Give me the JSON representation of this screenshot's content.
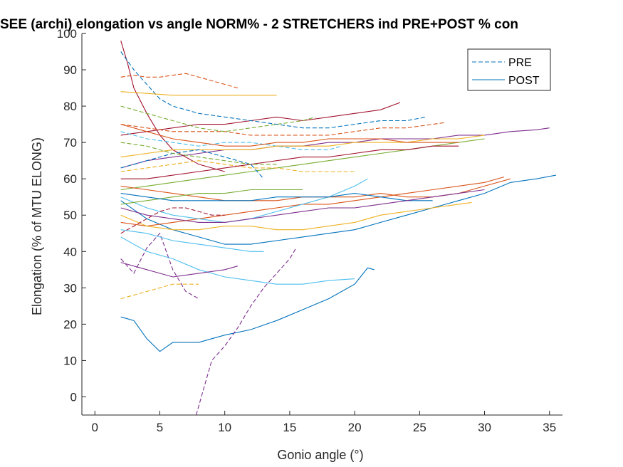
{
  "chart_data": {
    "type": "line",
    "title": "SEE (archi) elongation vs angle NORM% - 2 STRETCHERS ind PRE+POST % con",
    "xlabel": "Gonio angle (°)",
    "ylabel": "Elongation (% of MTU ELONG)",
    "xlim": [
      -1,
      36
    ],
    "ylim": [
      -5,
      100
    ],
    "xticks": [
      "0",
      "5",
      "10",
      "15",
      "20",
      "25",
      "30",
      "35"
    ],
    "yticks": [
      "0",
      "10",
      "20",
      "30",
      "40",
      "50",
      "60",
      "70",
      "80",
      "90",
      "100"
    ],
    "grid": false,
    "legend": {
      "placement": "top-right",
      "entries": [
        {
          "name": "PRE",
          "style": "dashed",
          "color": "#0072BD"
        },
        {
          "name": "POST",
          "style": "solid",
          "color": "#0072BD"
        }
      ]
    },
    "series": [
      {
        "name": "",
        "style": "solid",
        "color": "#0072BD",
        "x": [
          2,
          3,
          4,
          5,
          6,
          8,
          10,
          12,
          14,
          16,
          18,
          20,
          21,
          21.5
        ],
        "y": [
          22,
          21,
          16,
          12.5,
          15,
          15,
          17,
          18.5,
          21,
          24,
          27,
          31,
          35.5,
          35
        ]
      },
      {
        "name": "",
        "style": "dashed",
        "color": "#7E2F8E",
        "x": [
          7.8,
          9,
          10,
          11,
          12,
          13,
          14,
          15,
          15.5
        ],
        "y": [
          -5,
          10,
          14,
          19,
          25,
          30,
          34,
          38,
          41
        ]
      },
      {
        "name": "",
        "style": "dashed",
        "color": "#7E2F8E",
        "x": [
          2,
          2.5,
          3,
          4,
          5,
          6,
          7,
          8
        ],
        "y": [
          38,
          36,
          34,
          41,
          45,
          35,
          29,
          27
        ]
      },
      {
        "name": "",
        "style": "solid",
        "color": "#4DBEEE",
        "x": [
          2,
          4,
          6,
          8,
          10,
          12,
          14,
          16,
          18,
          20
        ],
        "y": [
          44,
          40,
          38,
          35,
          33,
          32,
          31,
          31,
          32,
          32.5
        ]
      },
      {
        "name": "",
        "style": "solid",
        "color": "#7E2F8E",
        "x": [
          2,
          4,
          6,
          8,
          10,
          11
        ],
        "y": [
          37,
          35,
          33,
          34,
          35,
          36
        ]
      },
      {
        "name": "",
        "style": "dashed",
        "color": "#EDB120",
        "x": [
          2,
          3,
          4,
          5,
          6,
          7,
          8
        ],
        "y": [
          27,
          28,
          29,
          30,
          31,
          31,
          31
        ]
      },
      {
        "name": "",
        "style": "solid",
        "color": "#0072BD",
        "x": [
          2,
          4,
          6,
          8,
          10,
          12,
          14,
          16,
          18,
          20,
          22,
          24,
          26,
          28,
          30,
          32,
          34,
          35.5
        ],
        "y": [
          54,
          49,
          46,
          44,
          42,
          42,
          43,
          44,
          45,
          46,
          48,
          50,
          52,
          54,
          56,
          59,
          60,
          61
        ]
      },
      {
        "name": "",
        "style": "solid",
        "color": "#D95319",
        "x": [
          2,
          4,
          6,
          8,
          10,
          12,
          14,
          16,
          18,
          20,
          22,
          24,
          26,
          28,
          30,
          31.5
        ],
        "y": [
          48,
          47,
          48,
          49,
          50,
          51,
          52,
          53,
          53,
          54,
          55,
          56,
          57,
          58,
          59,
          60.5
        ]
      },
      {
        "name": "",
        "style": "solid",
        "color": "#EDB120",
        "x": [
          2,
          4,
          6,
          8,
          10,
          12,
          14,
          16,
          18,
          20,
          22,
          24,
          26,
          28,
          29
        ],
        "y": [
          50,
          47,
          46,
          46,
          47,
          47,
          46,
          46,
          47,
          48,
          50,
          51,
          52,
          53,
          53.5
        ]
      },
      {
        "name": "",
        "style": "solid",
        "color": "#7E2F8E",
        "x": [
          2,
          4,
          6,
          8,
          10,
          12,
          14,
          16,
          18,
          20,
          22,
          24,
          26,
          28,
          30,
          32,
          34,
          35
        ],
        "y": [
          63,
          65,
          66,
          67,
          68,
          68,
          69,
          69,
          70,
          70,
          71,
          71,
          71,
          72,
          72,
          73,
          73.5,
          74
        ]
      },
      {
        "name": "",
        "style": "solid",
        "color": "#77AC30",
        "x": [
          2,
          4,
          6,
          8,
          10,
          12,
          14,
          16,
          18,
          20,
          22,
          24,
          26,
          28,
          30
        ],
        "y": [
          57,
          58,
          59,
          60,
          61,
          62,
          63,
          64,
          65,
          66,
          67,
          68,
          69,
          70,
          71
        ]
      },
      {
        "name": "",
        "style": "solid",
        "color": "#A2142F",
        "x": [
          2,
          4,
          6,
          8,
          10,
          12,
          14,
          16,
          18,
          20,
          22,
          23.5
        ],
        "y": [
          72,
          73,
          74,
          75,
          75,
          76,
          77,
          76,
          77,
          78,
          79,
          81
        ]
      },
      {
        "name": "",
        "style": "solid",
        "color": "#A2142F",
        "x": [
          2,
          2.5,
          3,
          4,
          5,
          6,
          7,
          8,
          9,
          10
        ],
        "y": [
          98,
          92,
          85,
          78,
          72,
          68,
          66,
          64,
          63,
          62
        ]
      },
      {
        "name": "",
        "style": "dashed",
        "color": "#0072BD",
        "x": [
          2,
          3,
          4,
          5,
          6,
          8,
          10,
          12,
          14,
          16,
          18,
          20,
          22,
          24,
          25.5
        ],
        "y": [
          95,
          90,
          86,
          82,
          80,
          78,
          77,
          76,
          75,
          74,
          74,
          75,
          76,
          76,
          77
        ]
      },
      {
        "name": "",
        "style": "dashed",
        "color": "#D95319",
        "x": [
          2,
          3,
          4,
          5,
          6,
          7,
          8,
          9,
          10,
          11
        ],
        "y": [
          88,
          88.5,
          88,
          88,
          88.5,
          89,
          88,
          87,
          86,
          85
        ]
      },
      {
        "name": "",
        "style": "solid",
        "color": "#EDB120",
        "x": [
          2,
          4,
          6,
          8,
          10,
          12,
          14
        ],
        "y": [
          84,
          83.5,
          83,
          83,
          83,
          83,
          83
        ]
      },
      {
        "name": "",
        "style": "dashed",
        "color": "#D95319",
        "x": [
          2,
          4,
          6,
          8,
          10,
          12,
          14,
          16,
          18,
          20,
          22,
          24,
          26,
          27
        ],
        "y": [
          75,
          74,
          73,
          73,
          73,
          72,
          72,
          72,
          72,
          73,
          74,
          74,
          75,
          75.5
        ]
      },
      {
        "name": "",
        "style": "dashed",
        "color": "#EDB120",
        "x": [
          2,
          4,
          6,
          8,
          10,
          12,
          14,
          16,
          18,
          20
        ],
        "y": [
          62,
          63,
          64,
          65,
          64,
          63,
          63,
          62,
          62,
          62
        ]
      },
      {
        "name": "",
        "style": "dashed",
        "color": "#77AC30",
        "x": [
          2,
          4,
          6,
          8,
          10,
          12,
          14,
          16,
          17
        ],
        "y": [
          80,
          78,
          76,
          74,
          73,
          74,
          75,
          76,
          77
        ]
      },
      {
        "name": "",
        "style": "dashed",
        "color": "#4DBEEE",
        "x": [
          2,
          4,
          6,
          8,
          10,
          12,
          14,
          16,
          18,
          19
        ],
        "y": [
          73,
          71,
          70,
          69,
          70,
          70,
          69,
          68,
          68,
          69
        ]
      },
      {
        "name": "",
        "style": "solid",
        "color": "#A2142F",
        "x": [
          2,
          4,
          6,
          8,
          10,
          12,
          14,
          16,
          18,
          20,
          22,
          24,
          26,
          28
        ],
        "y": [
          60,
          60,
          61,
          62,
          63,
          64,
          65,
          66,
          66,
          67,
          68,
          68,
          69,
          69
        ]
      },
      {
        "name": "",
        "style": "solid",
        "color": "#4DBEEE",
        "x": [
          2,
          4,
          6,
          8,
          10,
          12,
          14,
          16,
          18,
          20,
          21
        ],
        "y": [
          55,
          52,
          50,
          49,
          48,
          49,
          51,
          53,
          55,
          58,
          60
        ]
      },
      {
        "name": "",
        "style": "solid",
        "color": "#D95319",
        "x": [
          2,
          4,
          6,
          8,
          10,
          12,
          14,
          16,
          18,
          20,
          22,
          24,
          26,
          28,
          30,
          32
        ],
        "y": [
          58,
          57,
          56,
          55,
          54,
          54,
          54,
          55,
          55,
          55,
          56,
          55,
          55,
          56,
          58,
          60
        ]
      },
      {
        "name": "",
        "style": "solid",
        "color": "#77AC30",
        "x": [
          2,
          4,
          6,
          8,
          10,
          12,
          14,
          16
        ],
        "y": [
          53,
          54,
          55,
          56,
          56,
          57,
          57,
          57
        ]
      },
      {
        "name": "",
        "style": "solid",
        "color": "#0072BD",
        "x": [
          2,
          4,
          6,
          8,
          10,
          12,
          14,
          16,
          18,
          20,
          22,
          24,
          26
        ],
        "y": [
          56,
          55,
          54,
          54,
          54,
          54,
          55,
          55,
          55,
          56,
          55,
          54,
          54
        ]
      },
      {
        "name": "",
        "style": "solid",
        "color": "#EDB120",
        "x": [
          2,
          4,
          6,
          8,
          10,
          12,
          14,
          16,
          18,
          20,
          22,
          24,
          26,
          28,
          30
        ],
        "y": [
          66,
          67,
          68,
          68,
          68,
          68,
          69,
          69,
          69,
          70,
          70,
          70,
          71,
          71,
          72
        ]
      },
      {
        "name": "",
        "style": "solid",
        "color": "#4DBEEE",
        "x": [
          2,
          4,
          6,
          8,
          10,
          12,
          13
        ],
        "y": [
          46,
          45,
          43,
          42,
          41,
          40,
          40
        ]
      },
      {
        "name": "",
        "style": "solid",
        "color": "#7E2F8E",
        "x": [
          2,
          4,
          6,
          8,
          10,
          12,
          14,
          16,
          18,
          20,
          22,
          24,
          26,
          28,
          30
        ],
        "y": [
          52,
          50,
          49,
          48,
          48,
          49,
          50,
          51,
          52,
          52,
          53,
          54,
          55,
          56,
          57
        ]
      },
      {
        "name": "",
        "style": "dashed",
        "color": "#0072BD",
        "x": [
          2,
          4,
          6,
          8,
          10,
          12,
          13
        ],
        "y": [
          63,
          65,
          67,
          68,
          66,
          64,
          60
        ]
      },
      {
        "name": "",
        "style": "dashed",
        "color": "#A2142F",
        "x": [
          2,
          3,
          4,
          5,
          6,
          7,
          8,
          9,
          10
        ],
        "y": [
          45,
          47,
          49,
          51,
          52,
          52,
          51,
          50,
          50
        ]
      },
      {
        "name": "",
        "style": "dashed",
        "color": "#77AC30",
        "x": [
          2,
          4,
          6,
          8,
          10,
          12,
          14
        ],
        "y": [
          70,
          69,
          67,
          66,
          65,
          64,
          64
        ]
      },
      {
        "name": "",
        "style": "solid",
        "color": "#D95319",
        "x": [
          2,
          4,
          6,
          8,
          10,
          12,
          14,
          16,
          18,
          20,
          22,
          24,
          26,
          28
        ],
        "y": [
          75,
          73,
          71,
          70,
          69,
          69,
          70,
          70,
          71,
          71,
          71,
          70,
          70,
          70
        ]
      }
    ]
  }
}
